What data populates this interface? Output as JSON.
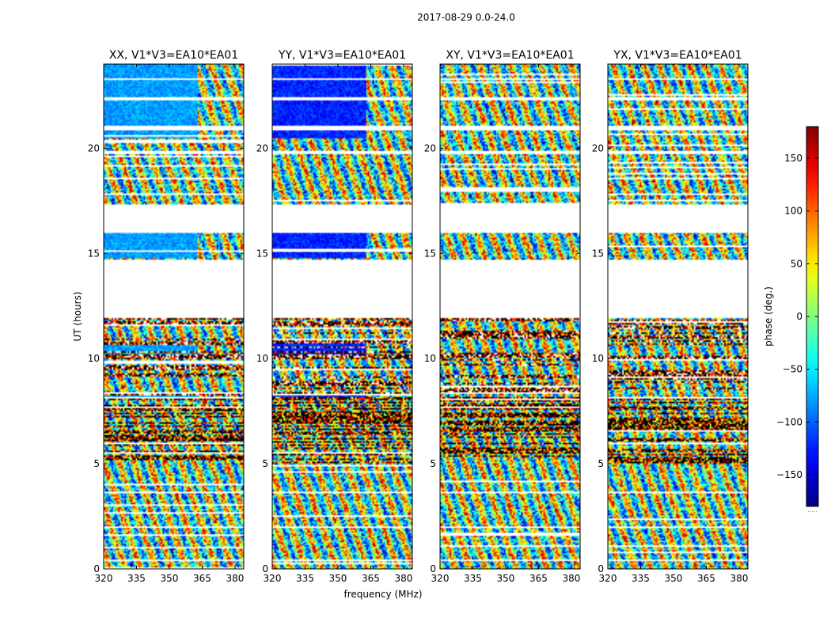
{
  "figure": {
    "title": "2017-08-29 0.0-24.0"
  },
  "chart_data": [
    {
      "type": "heatmap",
      "title": "XX, V1*V3=EA10*EA01",
      "xlabel": "frequency (MHz)",
      "ylabel": "UT (hours)",
      "xlim": [
        320,
        384
      ],
      "ylim": [
        0,
        24
      ],
      "xticks": [
        320,
        335,
        350,
        365,
        380
      ],
      "yticks": [
        0,
        5,
        10,
        15,
        20
      ],
      "colormap": "jet",
      "cbar_label": "phase (deg.)"
    },
    {
      "type": "heatmap",
      "title": "YY, V1*V3=EA10*EA01",
      "xlabel": "frequency (MHz)",
      "ylabel": "UT (hours)",
      "xlim": [
        320,
        384
      ],
      "ylim": [
        0,
        24
      ],
      "xticks": [
        320,
        335,
        350,
        365,
        380
      ],
      "yticks": [
        0,
        5,
        10,
        15,
        20
      ],
      "colormap": "jet",
      "cbar_label": "phase (deg.)"
    },
    {
      "type": "heatmap",
      "title": "XY, V1*V3=EA10*EA01",
      "xlabel": "frequency (MHz)",
      "ylabel": "UT (hours)",
      "xlim": [
        320,
        384
      ],
      "ylim": [
        0,
        24
      ],
      "xticks": [
        320,
        335,
        350,
        365,
        380
      ],
      "yticks": [
        0,
        5,
        10,
        15,
        20
      ],
      "colormap": "jet",
      "cbar_label": "phase (deg.)"
    },
    {
      "type": "heatmap",
      "title": "YX, V1*V3=EA10*EA01",
      "xlabel": "frequency (MHz)",
      "ylabel": "UT (hours)",
      "xlim": [
        320,
        384
      ],
      "ylim": [
        0,
        24
      ],
      "xticks": [
        320,
        335,
        350,
        365,
        380
      ],
      "yticks": [
        0,
        5,
        10,
        15,
        20
      ],
      "colormap": "jet",
      "cbar_label": "phase (deg.)"
    }
  ],
  "colorbar": {
    "label": "phase (deg.)",
    "range": [
      -180,
      180
    ],
    "ticks": [
      150,
      100,
      50,
      0,
      -50,
      -100,
      -150
    ],
    "tick_labels": [
      "150",
      "100",
      "50",
      "0",
      "−50",
      "−100",
      "−150"
    ],
    "bottom_marker": "....."
  },
  "data_gaps_hours": [
    [
      11.9,
      14.7
    ],
    [
      16.0,
      17.3
    ],
    [
      20.85,
      21.05
    ],
    [
      19.7,
      19.9
    ],
    [
      3.6,
      3.7
    ],
    [
      1.95,
      2.0
    ],
    [
      0.4,
      0.45
    ],
    [
      22.3,
      22.4
    ],
    [
      23.25,
      23.3
    ]
  ],
  "row_bands_hours": {
    "dark_start": 5.0,
    "dark_end": 8.2,
    "sparse_start": 8.2,
    "sparse_end": 11.9
  },
  "coherent_phase_channel_mhz": 363
}
